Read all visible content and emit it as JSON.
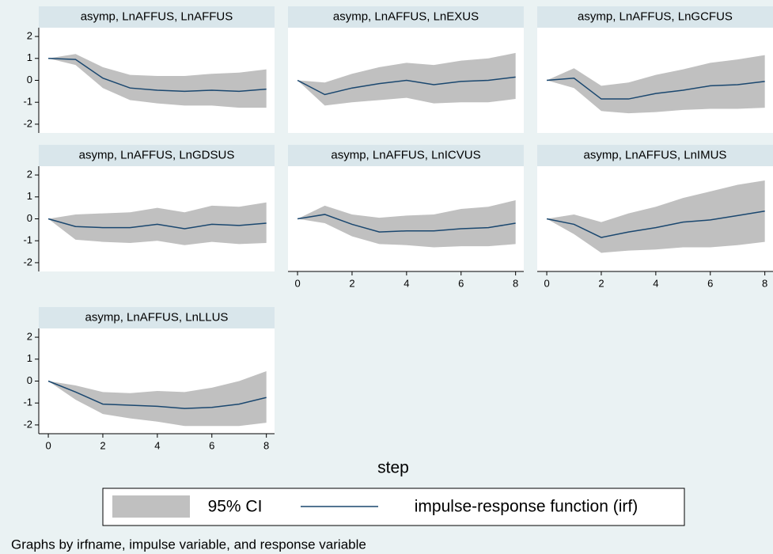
{
  "chart_data": [
    {
      "type": "line",
      "title": "asymp, LnAFFUS, LnAFFUS",
      "x": [
        0,
        1,
        2,
        3,
        4,
        5,
        6,
        7,
        8
      ],
      "values": [
        1,
        0.95,
        0.1,
        -0.35,
        -0.45,
        -0.5,
        -0.45,
        -0.5,
        -0.4
      ],
      "ci_upper": [
        1,
        1.2,
        0.6,
        0.25,
        0.2,
        0.2,
        0.3,
        0.35,
        0.5
      ],
      "ci_lower": [
        1,
        0.7,
        -0.35,
        -0.9,
        -1.05,
        -1.15,
        -1.15,
        -1.25,
        -1.25
      ],
      "xlim": [
        -0.35,
        8.3
      ],
      "ylim": [
        -2.4,
        2.4
      ],
      "yticks": [
        -2,
        -1,
        0,
        1,
        2
      ]
    },
    {
      "type": "line",
      "title": "asymp, LnAFFUS, LnEXUS",
      "x": [
        0,
        1,
        2,
        3,
        4,
        5,
        6,
        7,
        8
      ],
      "values": [
        0,
        -0.65,
        -0.35,
        -0.15,
        0,
        -0.2,
        -0.05,
        0,
        0.15
      ],
      "ci_upper": [
        0,
        -0.1,
        0.3,
        0.6,
        0.8,
        0.7,
        0.9,
        1,
        1.25
      ],
      "ci_lower": [
        0,
        -1.15,
        -1,
        -0.9,
        -0.8,
        -1.05,
        -1,
        -1,
        -0.85
      ],
      "xlim": [
        -0.35,
        8.3
      ],
      "ylim": [
        -2.4,
        2.4
      ]
    },
    {
      "type": "line",
      "title": "asymp, LnAFFUS, LnGCFUS",
      "x": [
        0,
        1,
        2,
        3,
        4,
        5,
        6,
        7,
        8
      ],
      "values": [
        0,
        0.1,
        -0.85,
        -0.85,
        -0.6,
        -0.45,
        -0.25,
        -0.2,
        -0.05
      ],
      "ci_upper": [
        0,
        0.55,
        -0.25,
        -0.1,
        0.25,
        0.5,
        0.8,
        0.95,
        1.15
      ],
      "ci_lower": [
        0,
        -0.35,
        -1.4,
        -1.5,
        -1.45,
        -1.35,
        -1.3,
        -1.3,
        -1.25
      ],
      "xlim": [
        -0.35,
        8.3
      ],
      "ylim": [
        -2.4,
        2.4
      ]
    },
    {
      "type": "line",
      "title": "asymp, LnAFFUS, LnGDSUS",
      "x": [
        0,
        1,
        2,
        3,
        4,
        5,
        6,
        7,
        8
      ],
      "values": [
        0,
        -0.35,
        -0.4,
        -0.4,
        -0.25,
        -0.45,
        -0.25,
        -0.3,
        -0.2
      ],
      "ci_upper": [
        0,
        0.2,
        0.25,
        0.3,
        0.5,
        0.3,
        0.6,
        0.55,
        0.75
      ],
      "ci_lower": [
        0,
        -0.95,
        -1.05,
        -1.1,
        -1,
        -1.2,
        -1.05,
        -1.15,
        -1.1
      ],
      "xlim": [
        -0.35,
        8.3
      ],
      "ylim": [
        -2.4,
        2.4
      ],
      "yticks": [
        -2,
        -1,
        0,
        1,
        2
      ]
    },
    {
      "type": "line",
      "title": "asymp, LnAFFUS, LnICVUS",
      "x": [
        0,
        1,
        2,
        3,
        4,
        5,
        6,
        7,
        8
      ],
      "values": [
        0,
        0.2,
        -0.25,
        -0.6,
        -0.55,
        -0.55,
        -0.45,
        -0.4,
        -0.2
      ],
      "ci_upper": [
        0,
        0.6,
        0.2,
        0.05,
        0.15,
        0.2,
        0.45,
        0.55,
        0.85
      ],
      "ci_lower": [
        0,
        -0.2,
        -0.8,
        -1.15,
        -1.2,
        -1.3,
        -1.25,
        -1.25,
        -1.15
      ],
      "xlim": [
        -0.35,
        8.3
      ],
      "ylim": [
        -2.4,
        2.4
      ],
      "xticks": [
        0,
        2,
        4,
        6,
        8
      ]
    },
    {
      "type": "line",
      "title": "asymp, LnAFFUS, LnIMUS",
      "x": [
        0,
        1,
        2,
        3,
        4,
        5,
        6,
        7,
        8
      ],
      "values": [
        0,
        -0.25,
        -0.85,
        -0.6,
        -0.4,
        -0.15,
        -0.05,
        0.15,
        0.35
      ],
      "ci_upper": [
        0,
        0.2,
        -0.15,
        0.25,
        0.55,
        0.95,
        1.25,
        1.55,
        1.75
      ],
      "ci_lower": [
        0,
        -0.7,
        -1.55,
        -1.45,
        -1.4,
        -1.3,
        -1.3,
        -1.2,
        -1.05
      ],
      "xlim": [
        -0.35,
        8.3
      ],
      "ylim": [
        -2.4,
        2.4
      ],
      "xticks": [
        0,
        2,
        4,
        6,
        8
      ]
    },
    {
      "type": "line",
      "title": "asymp, LnAFFUS, LnLLUS",
      "x": [
        0,
        1,
        2,
        3,
        4,
        5,
        6,
        7,
        8
      ],
      "values": [
        0,
        -0.5,
        -1.05,
        -1.1,
        -1.15,
        -1.25,
        -1.2,
        -1.05,
        -0.75
      ],
      "ci_upper": [
        0,
        -0.2,
        -0.5,
        -0.55,
        -0.45,
        -0.5,
        -0.3,
        0,
        0.45
      ],
      "ci_lower": [
        0,
        -0.85,
        -1.5,
        -1.7,
        -1.85,
        -2.05,
        -2.05,
        -2.05,
        -1.9
      ],
      "xlim": [
        -0.35,
        8.3
      ],
      "ylim": [
        -2.4,
        2.4
      ],
      "yticks": [
        -2,
        -1,
        0,
        1,
        2
      ],
      "xticks": [
        0,
        2,
        4,
        6,
        8
      ]
    }
  ],
  "shared": {
    "xlabel": "step",
    "legend": [
      {
        "name": "95% CI",
        "color": "#c0c0c0"
      },
      {
        "name": "impulse-response function (irf)",
        "color": "#1a476f"
      }
    ],
    "note": "Graphs by irfname, impulse variable, and response variable"
  }
}
